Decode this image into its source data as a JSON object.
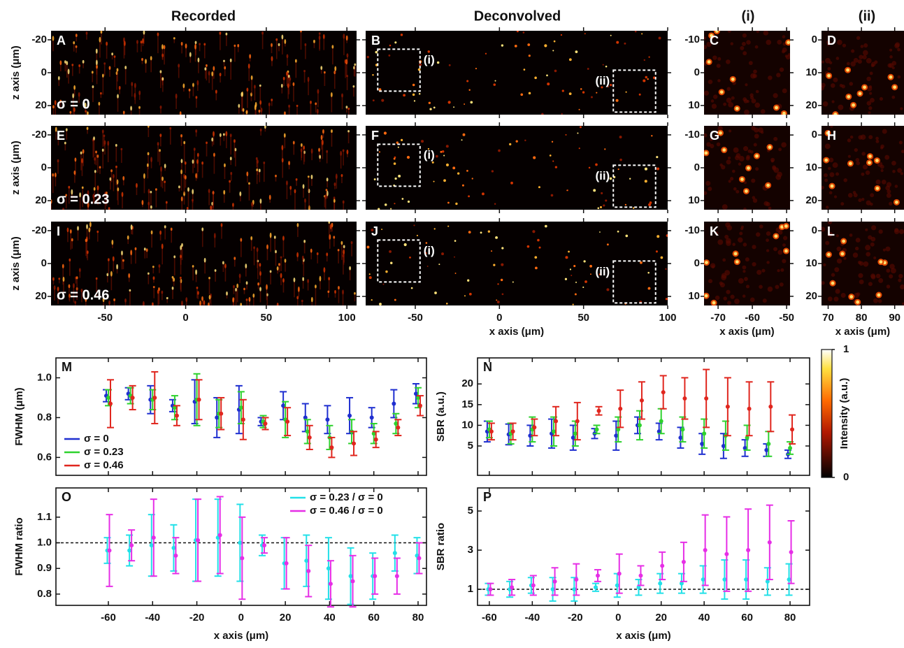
{
  "column_titles": [
    "Recorded",
    "Deconvolved",
    "(i)",
    "(ii)"
  ],
  "chart_data": [
    {
      "type": "image",
      "panel": "A",
      "render": "recorded",
      "annotation": "σ = 0",
      "xlim": [
        -83.5,
        106
      ],
      "ylim": [
        25.5,
        -25.5
      ],
      "xticks": [
        -50,
        0,
        50,
        100
      ],
      "yticks": [
        -20,
        0,
        20
      ],
      "xticklabels": false,
      "yticklabels": true,
      "ylabel": "z axis (μm)"
    },
    {
      "type": "image",
      "panel": "B",
      "render": "deconvolved",
      "insets": [
        "(i)",
        "(ii)"
      ],
      "xlim": [
        -79.5,
        100
      ],
      "ylim": [
        25.5,
        -25.5
      ],
      "xticks": [
        -50,
        0,
        50,
        100
      ],
      "yticks": [
        -20,
        0,
        20
      ],
      "xticklabels": false,
      "yticklabels": false
    },
    {
      "type": "image",
      "panel": "C",
      "render": "crop",
      "xlim": [
        -74.1,
        -49
      ],
      "ylim": [
        12.8,
        -12.8
      ],
      "xticks": [
        -70,
        -60,
        -50
      ],
      "yticks": [
        -10,
        0,
        10
      ],
      "xticklabels": false,
      "yticklabels": true
    },
    {
      "type": "image",
      "panel": "D",
      "render": "crop",
      "xlim": [
        68,
        92.8
      ],
      "ylim": [
        22.8,
        -2.8
      ],
      "xticks": [
        70,
        80,
        90
      ],
      "yticks": [
        0,
        10,
        20
      ],
      "xticklabels": false,
      "yticklabels": true
    },
    {
      "type": "image",
      "panel": "E",
      "render": "recorded",
      "annotation": "σ = 0.23",
      "xlim": [
        -83.5,
        106
      ],
      "ylim": [
        25.5,
        -25.5
      ],
      "xticks": [
        -50,
        0,
        50,
        100
      ],
      "yticks": [
        -20,
        0,
        20
      ],
      "xticklabels": false,
      "yticklabels": true,
      "ylabel": "z axis (μm)"
    },
    {
      "type": "image",
      "panel": "F",
      "render": "deconvolved",
      "insets": [
        "(i)",
        "(ii)"
      ],
      "xlim": [
        -79.5,
        100
      ],
      "ylim": [
        25.5,
        -25.5
      ],
      "xticks": [
        -50,
        0,
        50,
        100
      ],
      "yticks": [
        -20,
        0,
        20
      ],
      "xticklabels": false,
      "yticklabels": false
    },
    {
      "type": "image",
      "panel": "G",
      "render": "crop",
      "xlim": [
        -74.1,
        -49
      ],
      "ylim": [
        12.8,
        -12.8
      ],
      "xticks": [
        -70,
        -60,
        -50
      ],
      "yticks": [
        -10,
        0,
        10
      ],
      "xticklabels": false,
      "yticklabels": true
    },
    {
      "type": "image",
      "panel": "H",
      "render": "crop",
      "xlim": [
        68,
        92.8
      ],
      "ylim": [
        22.8,
        -2.8
      ],
      "xticks": [
        70,
        80,
        90
      ],
      "yticks": [
        0,
        10,
        20
      ],
      "xticklabels": false,
      "yticklabels": true
    },
    {
      "type": "image",
      "panel": "I",
      "render": "recorded",
      "annotation": "σ = 0.46",
      "xlim": [
        -83.5,
        106
      ],
      "ylim": [
        25.5,
        -25.5
      ],
      "xticks": [
        -50,
        0,
        50,
        100
      ],
      "yticks": [
        -20,
        0,
        20
      ],
      "xticklabels": true,
      "yticklabels": true,
      "ylabel": "z axis (μm)"
    },
    {
      "type": "image",
      "panel": "J",
      "render": "deconvolved",
      "insets": [
        "(i)",
        "(ii)"
      ],
      "xlim": [
        -79.5,
        100
      ],
      "ylim": [
        25.5,
        -25.5
      ],
      "xticks": [
        -50,
        0,
        50,
        100
      ],
      "yticks": [
        -20,
        0,
        20
      ],
      "xticklabels": true,
      "yticklabels": false,
      "xlabel": "x axis (μm)"
    },
    {
      "type": "image",
      "panel": "K",
      "render": "crop",
      "xlim": [
        -74.1,
        -49
      ],
      "ylim": [
        12.8,
        -12.8
      ],
      "xticks": [
        -70,
        -60,
        -50
      ],
      "yticks": [
        -10,
        0,
        10
      ],
      "xticklabels": true,
      "yticklabels": true,
      "xlabel": "x axis (μm)"
    },
    {
      "type": "image",
      "panel": "L",
      "render": "crop",
      "xlim": [
        68,
        92.8
      ],
      "ylim": [
        22.8,
        -2.8
      ],
      "xticks": [
        70,
        80,
        90
      ],
      "yticks": [
        0,
        10,
        20
      ],
      "xticklabels": true,
      "yticklabels": true,
      "xlabel": "x axis (μm)"
    },
    {
      "type": "errorbar",
      "panel": "M",
      "ylabel": "FWHM (μm)",
      "xlim": [
        -83.7,
        83.8
      ],
      "ylim": [
        0.51,
        1.1
      ],
      "xticks": [
        -60,
        -40,
        -20,
        0,
        20,
        40,
        60,
        80
      ],
      "yticks": [
        0.6,
        0.8,
        {
          "value": 1,
          "label": "1.0"
        }
      ],
      "xticklabels": false,
      "legend": "lower left",
      "x": [
        -60,
        -50,
        -40,
        -30,
        -20,
        -10,
        0,
        10,
        20,
        30,
        40,
        50,
        60,
        70,
        80
      ],
      "series": [
        {
          "name": "σ = 0",
          "color": "#1f2fd0",
          "values": [
            0.91,
            0.92,
            0.89,
            0.86,
            0.88,
            0.8,
            0.84,
            0.78,
            0.86,
            0.8,
            0.79,
            0.81,
            0.8,
            0.87,
            0.92
          ],
          "errors": [
            0.03,
            0.03,
            0.07,
            0.03,
            0.11,
            0.1,
            0.12,
            0.02,
            0.07,
            0.07,
            0.07,
            0.09,
            0.05,
            0.07,
            0.05
          ]
        },
        {
          "name": "σ = 0.23",
          "color": "#2ed22e",
          "values": [
            0.9,
            0.91,
            0.89,
            0.85,
            0.89,
            0.82,
            0.85,
            0.78,
            0.79,
            0.73,
            0.7,
            0.73,
            0.72,
            0.77,
            0.9
          ],
          "errors": [
            0.04,
            0.04,
            0.05,
            0.06,
            0.13,
            0.07,
            0.08,
            0.03,
            0.09,
            0.06,
            0.06,
            0.06,
            0.05,
            0.05,
            0.05
          ]
        },
        {
          "name": "σ = 0.46",
          "color": "#e0261e",
          "values": [
            0.87,
            0.9,
            0.9,
            0.81,
            0.89,
            0.82,
            0.79,
            0.77,
            0.78,
            0.7,
            0.65,
            0.67,
            0.69,
            0.75,
            0.86
          ],
          "errors": [
            0.12,
            0.06,
            0.13,
            0.05,
            0.1,
            0.08,
            0.1,
            0.03,
            0.07,
            0.06,
            0.05,
            0.06,
            0.04,
            0.04,
            0.05
          ]
        }
      ]
    },
    {
      "type": "errorbar",
      "panel": "N",
      "ylabel": "SBR (a.u.)",
      "xlim": [
        -65.5,
        89.1
      ],
      "ylim": [
        -2.1,
        26.3
      ],
      "xticks": [
        -60,
        -40,
        -20,
        0,
        20,
        40,
        60,
        80
      ],
      "yticks": [
        5,
        10,
        15,
        20
      ],
      "xticklabels": false,
      "x": [
        -60,
        -50,
        -40,
        -30,
        -20,
        -10,
        0,
        10,
        20,
        30,
        40,
        50,
        60,
        70,
        80
      ],
      "series": [
        {
          "color": "#1f2fd0",
          "values": [
            8.5,
            7.8,
            7.5,
            8,
            7,
            8,
            7.5,
            10,
            8.5,
            7,
            5.5,
            5,
            4.5,
            4,
            3
          ],
          "errors": [
            2.5,
            2.5,
            2.5,
            3.5,
            3,
            1.2,
            3.5,
            2,
            2,
            2.5,
            2.5,
            3,
            2,
            1.5,
            1
          ]
        },
        {
          "color": "#2ed22e",
          "values": [
            9,
            8,
            9,
            8.5,
            8,
            9,
            9,
            10,
            11,
            9,
            8,
            7.5,
            7,
            5.5,
            4.5
          ],
          "errors": [
            2,
            2.5,
            3,
            3.5,
            3,
            1,
            3,
            3.5,
            3,
            3,
            3.5,
            3.5,
            3,
            3,
            1.5
          ]
        },
        {
          "color": "#e0261e",
          "values": [
            8.5,
            8.5,
            9.5,
            11,
            11,
            13.5,
            14,
            16,
            18,
            16.5,
            16.5,
            14.5,
            14,
            14.5,
            9
          ],
          "errors": [
            2,
            2,
            2,
            3.5,
            4.5,
            1,
            4.5,
            4.5,
            4,
            5,
            7,
            7,
            6.5,
            6,
            3.5
          ]
        }
      ]
    },
    {
      "type": "errorbar",
      "panel": "O",
      "ylabel": "FWHM ratio",
      "xlabel": "x axis (μm)",
      "xlim": [
        -83.7,
        83.8
      ],
      "ylim": [
        0.756,
        1.214
      ],
      "xticks": [
        -60,
        -40,
        -20,
        0,
        20,
        40,
        60,
        80
      ],
      "yticks": [
        0.8,
        0.9,
        {
          "value": 1,
          "label": "1.0"
        },
        1.1
      ],
      "xticklabels": true,
      "hline": 1,
      "legend": "upper right",
      "x": [
        -60,
        -50,
        -40,
        -30,
        -20,
        -10,
        0,
        10,
        20,
        30,
        40,
        50,
        60,
        70,
        80
      ],
      "series": [
        {
          "name": "σ = 0.23 / σ = 0",
          "color": "#22e0e8",
          "values": [
            0.97,
            0.97,
            0.99,
            0.98,
            1.01,
            1.02,
            1,
            0.99,
            0.92,
            0.93,
            0.9,
            0.87,
            0.87,
            0.96,
            0.95
          ],
          "errors": [
            0.05,
            0.06,
            0.12,
            0.09,
            0.16,
            0.15,
            0.15,
            0.04,
            0.1,
            0.1,
            0.12,
            0.11,
            0.09,
            0.07,
            0.07
          ]
        },
        {
          "name": "σ = 0.46 / σ = 0",
          "color": "#e62ee6",
          "values": [
            0.97,
            0.99,
            1.02,
            0.95,
            1.01,
            1.03,
            0.94,
            0.99,
            0.92,
            0.89,
            0.84,
            0.85,
            0.87,
            0.87,
            0.94
          ],
          "errors": [
            0.14,
            0.06,
            0.15,
            0.07,
            0.16,
            0.15,
            0.16,
            0.03,
            0.1,
            0.1,
            0.09,
            0.1,
            0.07,
            0.07,
            0.06
          ]
        }
      ]
    },
    {
      "type": "errorbar",
      "panel": "P",
      "ylabel": "SBR ratio",
      "xlabel": "x axis (μm)",
      "xlim": [
        -65.5,
        89.1
      ],
      "ylim": [
        0.18,
        6.18
      ],
      "xticks": [
        -60,
        -40,
        -20,
        0,
        20,
        40,
        60,
        80
      ],
      "yticks": [
        1,
        3,
        5
      ],
      "xticklabels": true,
      "hline": 1,
      "x": [
        -60,
        -50,
        -40,
        -30,
        -20,
        -10,
        0,
        10,
        20,
        30,
        40,
        50,
        60,
        70,
        80
      ],
      "series": [
        {
          "color": "#22e0e8",
          "values": [
            1,
            1,
            1.2,
            1,
            1,
            1.1,
            1.2,
            1.1,
            1.3,
            1.3,
            1.5,
            1.5,
            1.5,
            1.4,
            1.5
          ],
          "errors": [
            0.3,
            0.4,
            0.4,
            0.6,
            0.6,
            0.2,
            0.6,
            0.4,
            0.5,
            0.5,
            0.7,
            1,
            1,
            0.7,
            0.8
          ]
        },
        {
          "color": "#e62ee6",
          "values": [
            1,
            1.1,
            1.2,
            1.4,
            1.5,
            1.7,
            1.8,
            1.7,
            2.2,
            2.4,
            3,
            2.8,
            3,
            3.4,
            2.9
          ],
          "errors": [
            0.3,
            0.4,
            0.5,
            0.7,
            0.8,
            0.3,
            1,
            0.5,
            0.7,
            1,
            1.8,
            1.9,
            2.1,
            1.9,
            1.6
          ]
        }
      ]
    },
    {
      "type": "colorbar",
      "ylabel": "Intensity (a.u.)",
      "ylim": [
        0,
        1
      ],
      "yticks": [
        0,
        1
      ]
    }
  ]
}
